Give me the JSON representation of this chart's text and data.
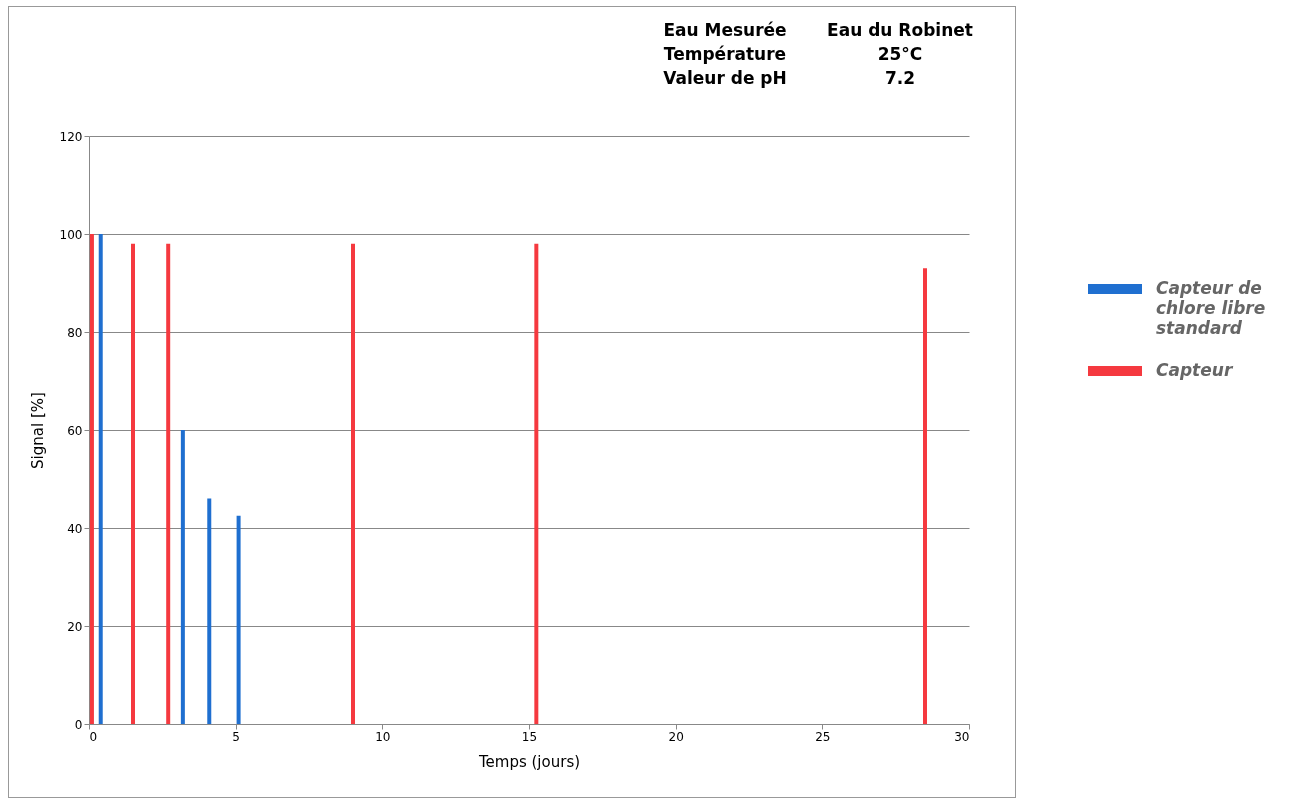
{
  "chart_data": {
    "type": "bar",
    "xlabel": "Temps (jours)",
    "ylabel": "Signal [%]",
    "annotations": [
      "Eau Mesurée",
      "Eau du Robinet",
      "Température",
      "25°C",
      "Valeur de pH",
      "7.2"
    ],
    "series": [
      {
        "name": "Capteur de chlore libre standard",
        "color": "#1f6fd0",
        "x": [
          0.4,
          3.2,
          4.1,
          5.1
        ],
        "values": [
          100,
          60,
          46,
          42.5
        ]
      },
      {
        "name": "Capteur",
        "color": "#f5393f",
        "x": [
          0.1,
          1.5,
          2.7,
          9,
          15.25,
          28.5
        ],
        "values": [
          100,
          98,
          98,
          98,
          98,
          93
        ]
      }
    ],
    "xlim": [
      0,
      30
    ],
    "xticks": [
      0,
      5,
      10,
      15,
      20,
      25,
      30
    ],
    "ylim": [
      0,
      120
    ],
    "yticks": [
      0,
      20,
      40,
      60,
      80,
      100,
      120
    ],
    "grid": "y",
    "legend": "right"
  }
}
